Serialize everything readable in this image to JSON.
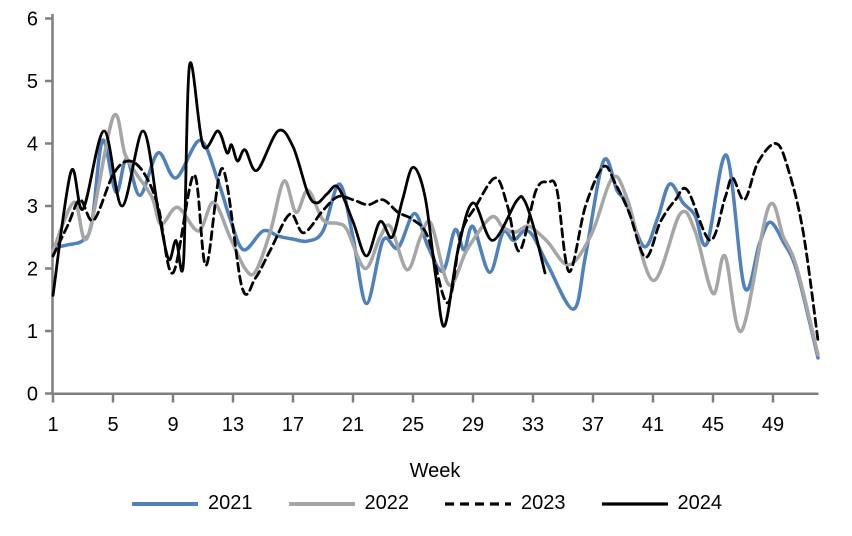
{
  "chart_data": {
    "type": "line",
    "title": "",
    "xlabel": "Week",
    "ylabel": "",
    "grid": false,
    "legend_position": "bottom",
    "axis_color": "#7F7F7F",
    "text_color": "#000000",
    "x_axis": {
      "min": 1,
      "max": 52,
      "tick_labels": [
        1,
        5,
        9,
        13,
        17,
        21,
        25,
        29,
        33,
        37,
        41,
        45,
        49
      ]
    },
    "y_axis": {
      "min": 0,
      "max": 6,
      "tick_labels": [
        0,
        1,
        2,
        3,
        4,
        5,
        6
      ]
    },
    "series": [
      {
        "name": "2021",
        "color": "#4F81BD",
        "style": "solid",
        "width": 3.5,
        "points": [
          [
            1,
            2.33
          ],
          [
            2,
            2.38
          ],
          [
            3,
            2.45
          ],
          [
            3.6,
            2.75
          ],
          [
            4.3,
            4.05
          ],
          [
            5.2,
            3.22
          ],
          [
            5.9,
            3.75
          ],
          [
            6.8,
            3.17
          ],
          [
            8,
            3.85
          ],
          [
            9.2,
            3.45
          ],
          [
            10.8,
            4.05
          ],
          [
            12,
            3.4
          ],
          [
            12.8,
            2.8
          ],
          [
            13.7,
            2.3
          ],
          [
            15,
            2.6
          ],
          [
            16,
            2.52
          ],
          [
            17,
            2.47
          ],
          [
            18,
            2.44
          ],
          [
            19,
            2.6
          ],
          [
            20.1,
            3.35
          ],
          [
            21,
            2.5
          ],
          [
            21.9,
            1.44
          ],
          [
            23,
            2.45
          ],
          [
            24,
            2.33
          ],
          [
            25.1,
            2.88
          ],
          [
            26,
            2.35
          ],
          [
            27,
            1.96
          ],
          [
            27.8,
            2.62
          ],
          [
            28.4,
            2.3
          ],
          [
            29,
            2.67
          ],
          [
            30.1,
            1.94
          ],
          [
            31,
            2.58
          ],
          [
            31.7,
            2.45
          ],
          [
            32.4,
            2.6
          ],
          [
            33,
            2.52
          ],
          [
            34,
            2.05
          ],
          [
            35.7,
            1.35
          ],
          [
            36.5,
            2.2
          ],
          [
            37.7,
            3.72
          ],
          [
            38.6,
            3.25
          ],
          [
            39.2,
            3.05
          ],
          [
            40.4,
            2.35
          ],
          [
            41.3,
            2.8
          ],
          [
            42.1,
            3.35
          ],
          [
            43,
            3.05
          ],
          [
            43.8,
            2.85
          ],
          [
            44.6,
            2.4
          ],
          [
            45.9,
            3.81
          ],
          [
            47.1,
            1.7
          ],
          [
            48.1,
            2.4
          ],
          [
            48.8,
            2.74
          ],
          [
            49.7,
            2.42
          ],
          [
            50.6,
            1.95
          ],
          [
            52,
            0.57
          ]
        ]
      },
      {
        "name": "2022",
        "color": "#A6A6A6",
        "style": "solid",
        "width": 3.5,
        "points": [
          [
            1,
            2.28
          ],
          [
            2.4,
            3.06
          ],
          [
            3.3,
            2.5
          ],
          [
            5,
            4.42
          ],
          [
            5.8,
            3.83
          ],
          [
            6.6,
            3.5
          ],
          [
            7.6,
            3.14
          ],
          [
            8.2,
            2.71
          ],
          [
            9.3,
            2.98
          ],
          [
            10.7,
            2.6
          ],
          [
            11.7,
            3.06
          ],
          [
            12.8,
            2.5
          ],
          [
            13.8,
            2.0
          ],
          [
            14.5,
            1.95
          ],
          [
            15.5,
            2.6
          ],
          [
            16.4,
            3.4
          ],
          [
            17.2,
            2.9
          ],
          [
            18,
            3.25
          ],
          [
            19,
            2.78
          ],
          [
            20,
            2.72
          ],
          [
            20.6,
            2.62
          ],
          [
            21.8,
            2.0
          ],
          [
            22.8,
            2.5
          ],
          [
            23.5,
            2.67
          ],
          [
            24.6,
            1.98
          ],
          [
            25.5,
            2.5
          ],
          [
            26.2,
            2.72
          ],
          [
            27.4,
            1.74
          ],
          [
            28.6,
            2.3
          ],
          [
            30.2,
            2.82
          ],
          [
            31,
            2.66
          ],
          [
            31.8,
            2.58
          ],
          [
            32.6,
            2.68
          ],
          [
            33.2,
            2.6
          ],
          [
            34,
            2.42
          ],
          [
            35.4,
            2.06
          ],
          [
            36.9,
            2.55
          ],
          [
            38.3,
            3.45
          ],
          [
            39.3,
            3.1
          ],
          [
            41,
            1.81
          ],
          [
            42.8,
            2.87
          ],
          [
            43.8,
            2.6
          ],
          [
            45,
            1.6
          ],
          [
            45.8,
            2.2
          ],
          [
            46.9,
            1.0
          ],
          [
            48.7,
            2.98
          ],
          [
            49.7,
            2.5
          ],
          [
            50.6,
            2.0
          ],
          [
            52,
            0.62
          ]
        ]
      },
      {
        "name": "2023",
        "color": "#000000",
        "style": "dashed",
        "width": 2.8,
        "points": [
          [
            1,
            2.2
          ],
          [
            2,
            2.7
          ],
          [
            2.8,
            3.1
          ],
          [
            3.7,
            2.77
          ],
          [
            5,
            3.5
          ],
          [
            6,
            3.72
          ],
          [
            7,
            3.55
          ],
          [
            8,
            3.0
          ],
          [
            9,
            1.93
          ],
          [
            10.4,
            3.5
          ],
          [
            11.2,
            2.05
          ],
          [
            12.3,
            3.6
          ],
          [
            13.6,
            1.7
          ],
          [
            14.5,
            1.85
          ],
          [
            15.5,
            2.3
          ],
          [
            16.8,
            2.87
          ],
          [
            17.7,
            2.57
          ],
          [
            19,
            2.93
          ],
          [
            20,
            3.15
          ],
          [
            21,
            3.1
          ],
          [
            22,
            3.02
          ],
          [
            23,
            3.1
          ],
          [
            24,
            2.9
          ],
          [
            25,
            2.78
          ],
          [
            26,
            2.5
          ],
          [
            27.3,
            1.45
          ],
          [
            28.2,
            2.55
          ],
          [
            29.2,
            3.0
          ],
          [
            30.5,
            3.45
          ],
          [
            31.3,
            3.0
          ],
          [
            32.1,
            2.28
          ],
          [
            33.2,
            3.25
          ],
          [
            34,
            3.38
          ],
          [
            34.6,
            3.25
          ],
          [
            35.4,
            1.95
          ],
          [
            36.5,
            3.0
          ],
          [
            37.7,
            3.63
          ],
          [
            38.5,
            3.35
          ],
          [
            39.4,
            2.9
          ],
          [
            40.5,
            2.18
          ],
          [
            41.5,
            2.75
          ],
          [
            42.5,
            3.1
          ],
          [
            43.3,
            3.25
          ],
          [
            44.8,
            2.45
          ],
          [
            45.8,
            3.13
          ],
          [
            46.3,
            3.45
          ],
          [
            47.1,
            3.1
          ],
          [
            48,
            3.7
          ],
          [
            49.2,
            4.0
          ],
          [
            50,
            3.6
          ],
          [
            51,
            2.6
          ],
          [
            52,
            0.85
          ]
        ]
      },
      {
        "name": "2024",
        "color": "#000000",
        "style": "solid",
        "width": 2.8,
        "points": [
          [
            1,
            1.57
          ],
          [
            2.2,
            3.55
          ],
          [
            3,
            2.95
          ],
          [
            4.4,
            4.2
          ],
          [
            5.6,
            3.0
          ],
          [
            7,
            4.2
          ],
          [
            8,
            2.95
          ],
          [
            8.7,
            2.15
          ],
          [
            9.2,
            2.45
          ],
          [
            9.7,
            2.1
          ],
          [
            10.1,
            5.25
          ],
          [
            11,
            3.97
          ],
          [
            12,
            4.2
          ],
          [
            12.6,
            3.85
          ],
          [
            12.9,
            3.98
          ],
          [
            13.3,
            3.72
          ],
          [
            13.8,
            3.9
          ],
          [
            14.6,
            3.57
          ],
          [
            16,
            4.2
          ],
          [
            17,
            3.95
          ],
          [
            18,
            3.2
          ],
          [
            18.6,
            3.05
          ],
          [
            19.3,
            3.2
          ],
          [
            20,
            3.3
          ],
          [
            21,
            2.75
          ],
          [
            21.9,
            2.2
          ],
          [
            22.8,
            2.75
          ],
          [
            23.6,
            2.5
          ],
          [
            24.3,
            3.1
          ],
          [
            25,
            3.62
          ],
          [
            25.8,
            3.15
          ],
          [
            26.5,
            1.9
          ],
          [
            27.1,
            1.08
          ],
          [
            28,
            2.3
          ],
          [
            29,
            3.05
          ],
          [
            30.3,
            2.45
          ],
          [
            31.9,
            3.08
          ],
          [
            32.4,
            3.1
          ],
          [
            33,
            2.7
          ],
          [
            33.8,
            1.93
          ]
        ]
      }
    ]
  }
}
